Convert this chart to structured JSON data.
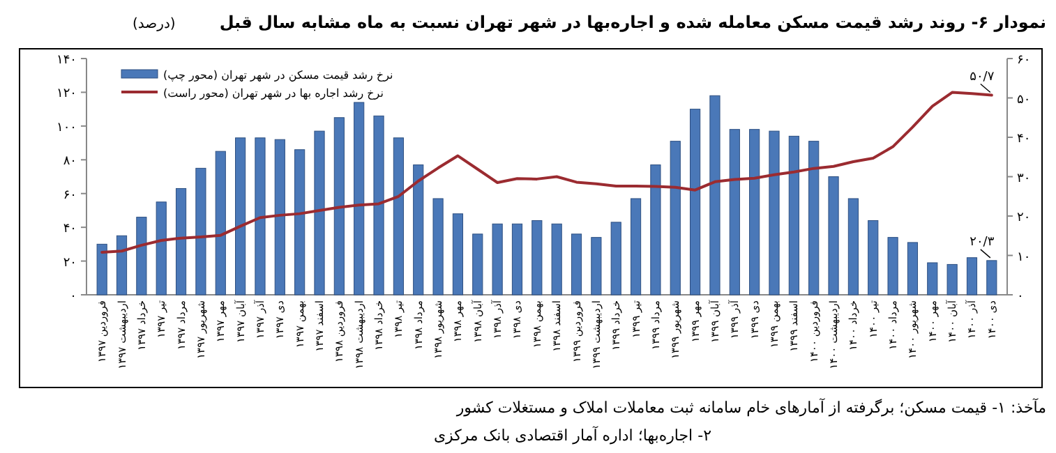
{
  "chart_data": {
    "type": "bar",
    "title": "نمودار ۶- روند رشد قیمت مسکن معامله شده و اجاره‌بها در شهر تهران نسبت به ماه مشابه سال قبل",
    "ylabel": "(درصد)",
    "categories": [
      "فروردین ۱۳۹۷",
      "اردیبهشت ۱۳۹۷",
      "خرداد ۱۳۹۷",
      "تیر ۱۳۹۷",
      "مرداد ۱۳۹۷",
      "شهریور ۱۳۹۷",
      "مهر ۱۳۹۷",
      "آبان ۱۳۹۷",
      "آذر ۱۳۹۷",
      "دی ۱۳۹۷",
      "بهمن ۱۳۹۷",
      "اسفند ۱۳۹۷",
      "فروردین ۱۳۹۸",
      "اردیبهشت ۱۳۹۸",
      "خرداد ۱۳۹۸",
      "تیر ۱۳۹۸",
      "مرداد ۱۳۹۸",
      "شهریور ۱۳۹۸",
      "مهر ۱۳۹۸",
      "آبان ۱۳۹۸",
      "آذر ۱۳۹۸",
      "دی ۱۳۹۸",
      "بهمن ۱۳۹۸",
      "اسفند ۱۳۹۸",
      "فروردین ۱۳۹۹",
      "اردیبهشت ۱۳۹۹",
      "خرداد ۱۳۹۹",
      "تیر ۱۳۹۹",
      "مرداد ۱۳۹۹",
      "شهریور ۱۳۹۹",
      "مهر ۱۳۹۹",
      "آبان ۱۳۹۹",
      "آذر ۱۳۹۹",
      "دی ۱۳۹۹",
      "بهمن ۱۳۹۹",
      "اسفند ۱۳۹۹",
      "فروردین ۱۴۰۰",
      "اردیبهشت ۱۴۰۰",
      "خرداد ۱۴۰۰",
      "تیر ۱۴۰۰",
      "مرداد ۱۴۰۰",
      "شهریور ۱۴۰۰",
      "مهر ۱۴۰۰",
      "آبان ۱۴۰۰",
      "آذر ۱۴۰۰",
      "دی ۱۴۰۰"
    ],
    "series": [
      {
        "name": "نرخ رشد قیمت مسکن در شهر تهران (محور چپ)",
        "type": "bar",
        "color": "#4a78b8",
        "values": [
          30,
          35,
          46,
          55,
          63,
          75,
          85,
          93,
          93,
          92,
          86,
          97,
          105,
          114,
          106,
          93,
          77,
          57,
          48,
          36,
          42,
          42,
          44,
          42,
          36,
          34,
          43,
          57,
          77,
          91,
          110,
          118,
          98,
          98,
          97,
          94,
          91,
          70,
          57,
          44,
          34,
          31,
          19,
          18,
          22,
          20.3
        ],
        "value_labels": [
          null,
          null,
          null,
          null,
          null,
          null,
          null,
          null,
          null,
          null,
          null,
          null,
          null,
          null,
          null,
          null,
          null,
          null,
          null,
          null,
          null,
          null,
          null,
          null,
          null,
          null,
          null,
          null,
          null,
          null,
          null,
          null,
          null,
          null,
          null,
          null,
          null,
          null,
          null,
          null,
          null,
          null,
          null,
          null,
          null,
          "۲۰/۳"
        ]
      },
      {
        "name": "نرخ رشد اجاره بها در شهر تهران (محور راست)",
        "type": "line",
        "axis": "y2",
        "color": "#9b2b30",
        "values": [
          10.8,
          11.1,
          12.6,
          13.8,
          14.4,
          14.7,
          15.1,
          17.4,
          19.6,
          20.2,
          20.6,
          21.4,
          22.2,
          22.8,
          23.1,
          25.0,
          28.9,
          32.2,
          35.3,
          31.9,
          28.5,
          29.5,
          29.4,
          30.0,
          28.6,
          28.2,
          27.6,
          27.6,
          27.5,
          27.3,
          26.6,
          28.7,
          29.3,
          29.6,
          30.5,
          31.2,
          32.1,
          32.6,
          33.8,
          34.7,
          37.6,
          42.6,
          47.9,
          51.4,
          51.1,
          50.7
        ],
        "value_labels": [
          null,
          null,
          null,
          null,
          null,
          null,
          null,
          null,
          null,
          null,
          null,
          null,
          null,
          null,
          null,
          null,
          null,
          null,
          null,
          null,
          null,
          null,
          null,
          null,
          null,
          null,
          null,
          null,
          null,
          null,
          null,
          null,
          null,
          null,
          null,
          null,
          null,
          null,
          null,
          null,
          null,
          null,
          null,
          null,
          null,
          "۵۰/۷"
        ]
      }
    ],
    "ylim": [
      0,
      140
    ],
    "yticks": [
      {
        "value": 0,
        "label": "۰"
      },
      {
        "value": 20,
        "label": "۲۰"
      },
      {
        "value": 40,
        "label": "۴۰"
      },
      {
        "value": 60,
        "label": "۶۰"
      },
      {
        "value": 80,
        "label": "۸۰"
      },
      {
        "value": 100,
        "label": "۱۰۰"
      },
      {
        "value": 120,
        "label": "۱۲۰"
      },
      {
        "value": 140,
        "label": "۱۴۰"
      }
    ],
    "y2lim": [
      0,
      60
    ],
    "y2ticks": [
      {
        "value": 0,
        "label": "۰"
      },
      {
        "value": 10,
        "label": "۱۰"
      },
      {
        "value": 20,
        "label": "۲۰"
      },
      {
        "value": 30,
        "label": "۳۰"
      },
      {
        "value": 40,
        "label": "۴۰"
      },
      {
        "value": 50,
        "label": "۵۰"
      },
      {
        "value": 60,
        "label": "۶۰"
      }
    ],
    "legend": "top left",
    "annotations": [
      "مآخذ: ۱- قیمت مسکن؛ برگرفته از آمارهای خام سامانه ثبت معاملات املاک و مستغلات کشور",
      "۲- اجاره‌بها؛ اداره آمار اقتصادی بانک مرکزی"
    ]
  }
}
